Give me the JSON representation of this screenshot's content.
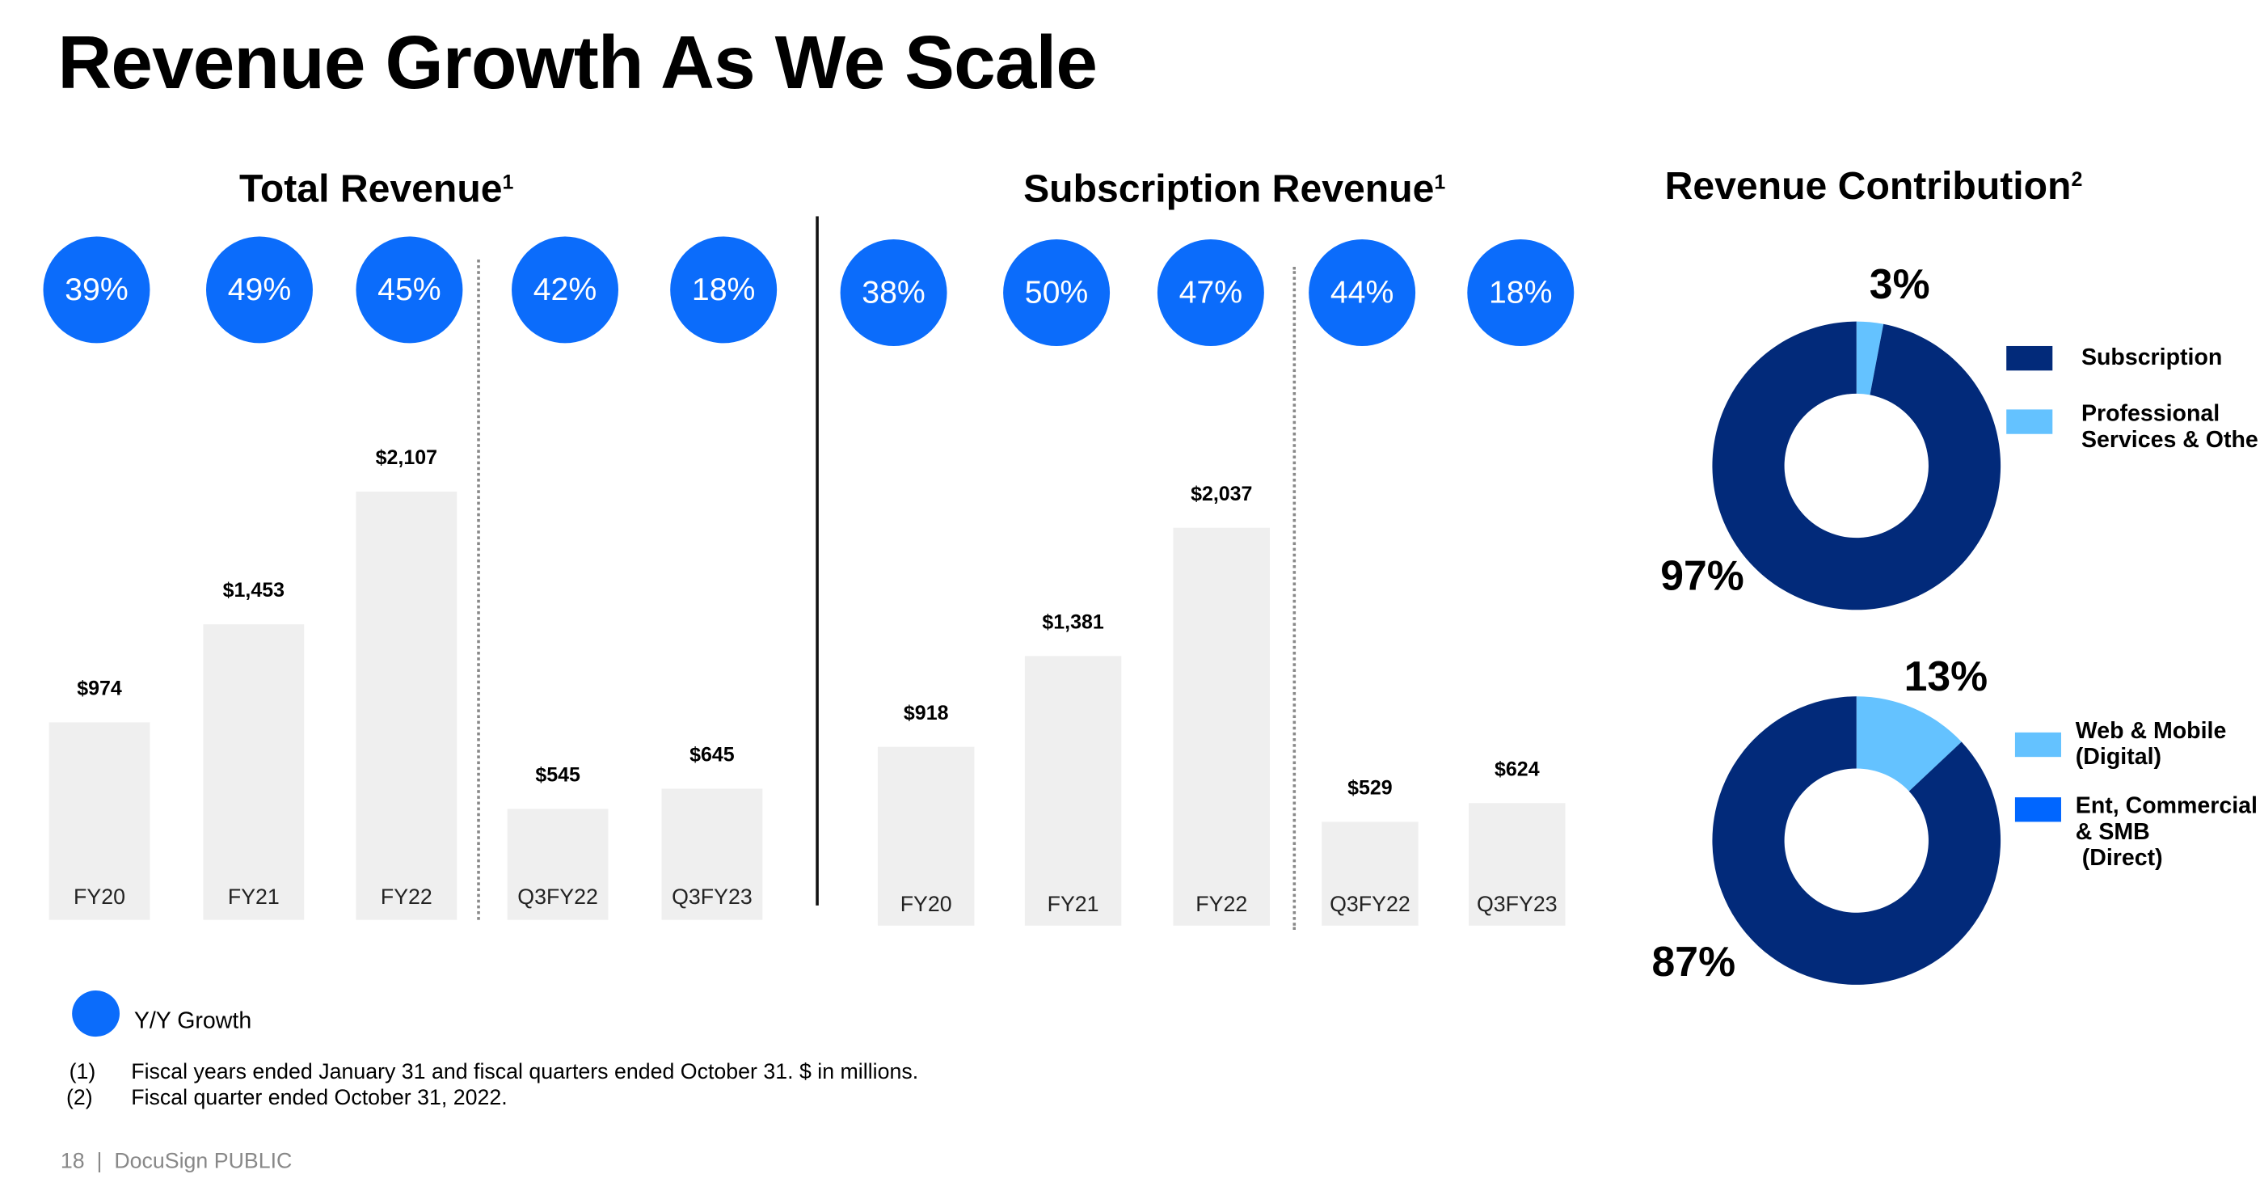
{
  "title": "Revenue Growth As We Scale",
  "colors": {
    "growth": "#0b6cfb",
    "subscription": "#022a7a",
    "light": "#64c2ff",
    "direct": "#0066ff",
    "bar": "#efefef"
  },
  "chart_data": [
    {
      "type": "bar",
      "title": "Total Revenue",
      "title_sup": "1",
      "categories": [
        "FY20",
        "FY21",
        "FY22",
        "Q3FY22",
        "Q3FY23"
      ],
      "values": [
        974,
        1453,
        2107,
        545,
        645
      ],
      "value_labels": [
        "$974",
        "$1,453",
        "$2,107",
        "$545",
        "$645"
      ],
      "growth_labels": [
        "39%",
        "49%",
        "45%",
        "42%",
        "18%"
      ],
      "units": "$ in millions"
    },
    {
      "type": "bar",
      "title": "Subscription Revenue",
      "title_sup": "1",
      "categories": [
        "FY20",
        "FY21",
        "FY22",
        "Q3FY22",
        "Q3FY23"
      ],
      "values": [
        918,
        1381,
        2037,
        529,
        624
      ],
      "value_labels": [
        "$918",
        "$1,381",
        "$2,037",
        "$529",
        "$624"
      ],
      "growth_labels": [
        "38%",
        "50%",
        "47%",
        "44%",
        "18%"
      ],
      "units": "$ in millions"
    },
    {
      "type": "pie",
      "title": "Revenue Contribution",
      "title_sup": "2",
      "slices": [
        {
          "name": "Subscription",
          "value": 97,
          "label": "97%"
        },
        {
          "name": "Professional\nServices & Othe",
          "value": 3,
          "label": "3%"
        }
      ]
    },
    {
      "type": "pie",
      "slices": [
        {
          "name": "Ent, Commercial\n& SMB\n (Direct)",
          "value": 87,
          "label": "87%"
        },
        {
          "name": "Web & Mobile\n(Digital)",
          "value": 13,
          "label": "13%"
        }
      ]
    }
  ],
  "legend": {
    "growth": "Y/Y Growth"
  },
  "footnotes": [
    {
      "num": "(1)",
      "text": "Fiscal years ended January 31 and fiscal quarters ended October 31. $ in millions."
    },
    {
      "num": "(2)",
      "text": "Fiscal quarter ended October 31, 2022."
    }
  ],
  "footer": "18  |  DocuSign PUBLIC"
}
